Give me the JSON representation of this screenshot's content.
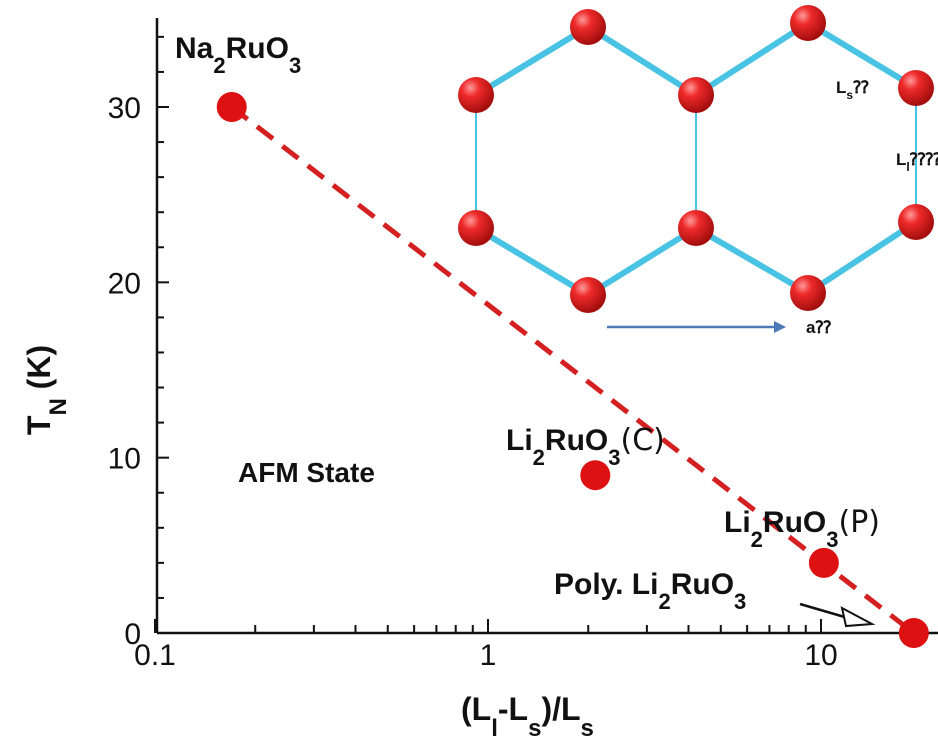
{
  "chart_data": {
    "type": "scatter",
    "xscale": "log",
    "xlim": [
      0.1,
      22
    ],
    "ylim": [
      0,
      35
    ],
    "xticks": [
      0.1,
      1,
      10
    ],
    "yticks": [
      0,
      10,
      20,
      30
    ],
    "xtick_labels": [
      "0.1",
      "1",
      "10"
    ],
    "ytick_labels": [
      "0",
      "10",
      "20",
      "30"
    ],
    "xlabel": {
      "open": "(L",
      "sub1": "l",
      "mid": "-L",
      "sub2": "s",
      "close": ")/L",
      "sub3": "s"
    },
    "ylabel": {
      "main": "T",
      "sub": "N",
      "rest": " (K)"
    },
    "points": [
      {
        "x": 0.17,
        "y": 30,
        "label_main": "Na",
        "label_sub1": "2",
        "label_mid": "RuO",
        "label_sub2": "3",
        "label_suffix": ""
      },
      {
        "x": 2.1,
        "y": 9,
        "label_main": "Li",
        "label_sub1": "2",
        "label_mid": "RuO",
        "label_sub2": "3",
        "label_suffix": "(C)"
      },
      {
        "x": 10.2,
        "y": 4,
        "label_main": "Li",
        "label_sub1": "2",
        "label_mid": "RuO",
        "label_sub2": "3",
        "label_suffix": "(P)"
      },
      {
        "x": 19.0,
        "y": 0,
        "label_main": "Poly. Li",
        "label_sub1": "2",
        "label_mid": "RuO",
        "label_sub2": "3",
        "label_suffix": ""
      }
    ],
    "trend_line": {
      "from": [
        0.17,
        30
      ],
      "to": [
        19.0,
        0
      ],
      "style": "dashed"
    },
    "region_label": "AFM State",
    "inset": {
      "type": "honeycomb-lattice",
      "label_ls_main": "L",
      "label_ls_sub": "s",
      "label_ls_tail": "⁇",
      "label_ll_main": "L",
      "label_ll_sub": "l",
      "label_ll_tail": "⁇⁇",
      "label_a": "a⁇"
    },
    "colors": {
      "points": "#dd1111",
      "trend": "#d42020",
      "lattice_bond": "#49c3e3",
      "lattice_atom": "#e31b1b",
      "arrow": "#4e79b7",
      "axis": "#111111"
    }
  }
}
